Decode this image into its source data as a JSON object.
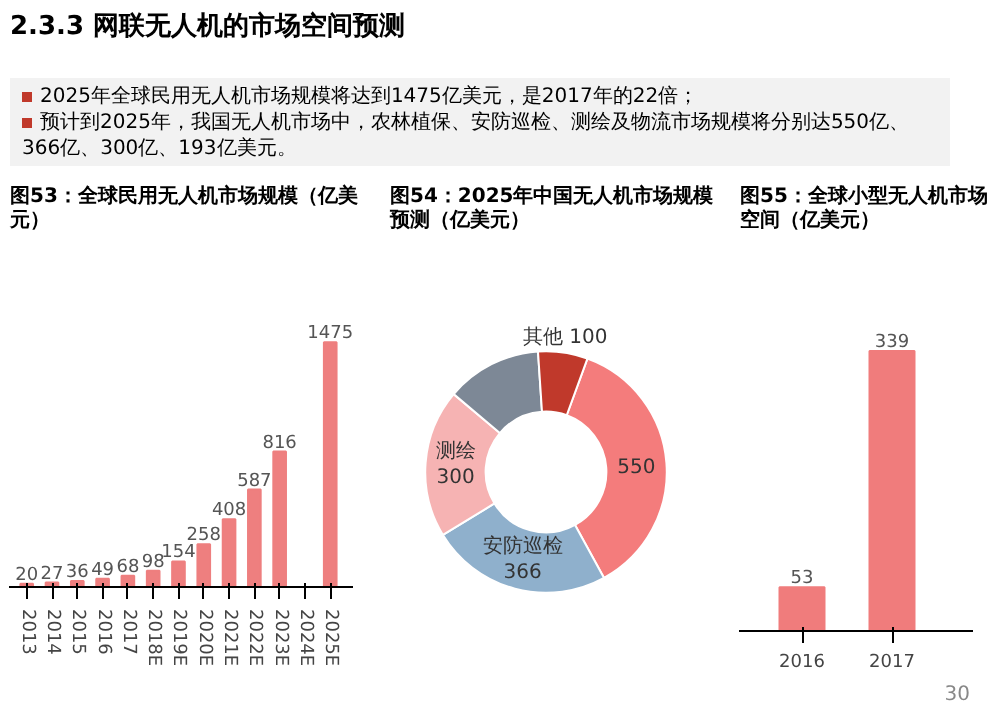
{
  "chart_data": [
    {
      "type": "other",
      "title": "2.3.3 网联无人机的市场空间预测",
      "annotations": [
        "2025年全球民用无人机市场规模将达到1475亿美元，是2017年的22倍；",
        "预计到2025年，我国无人机市场中，农林植保、安防巡检、测绘及物流市场规模将分别达550亿、366亿、300亿、193亿美元。",
        "30"
      ]
    },
    {
      "type": "bar",
      "title": "图53：全球民用无人机市场规模（亿美元）",
      "categories": [
        "2013",
        "2014",
        "2015",
        "2016",
        "2017",
        "2018E",
        "2019E",
        "2020E",
        "2021E",
        "2022E",
        "2023E",
        "2024E",
        "2025E"
      ],
      "values": [
        20,
        27,
        36,
        49,
        68,
        98,
        154,
        258,
        408,
        587,
        816,
        null,
        1475
      ],
      "color": "#ee7f7f",
      "data_labels": true
    },
    {
      "type": "donut",
      "title": "图54：2025年中国无人机市场规模预测（亿美元）",
      "categories": [
        null,
        "安防巡检",
        "测绘",
        null,
        "其他"
      ],
      "values": [
        550,
        366,
        300,
        193,
        100
      ],
      "value_labels": [
        "550",
        "366",
        "300",
        null,
        "100"
      ],
      "colors": [
        "#f47c7c",
        "#8fb0cc",
        "#f6b3b3",
        "#7d8896",
        "#c0392b"
      ]
    },
    {
      "type": "bar",
      "title": "图55：全球小型无人机市场空间（亿美元）",
      "categories": [
        "2016",
        "2017"
      ],
      "values": [
        53,
        339
      ],
      "color": "#f07c7c",
      "data_labels": true
    }
  ]
}
